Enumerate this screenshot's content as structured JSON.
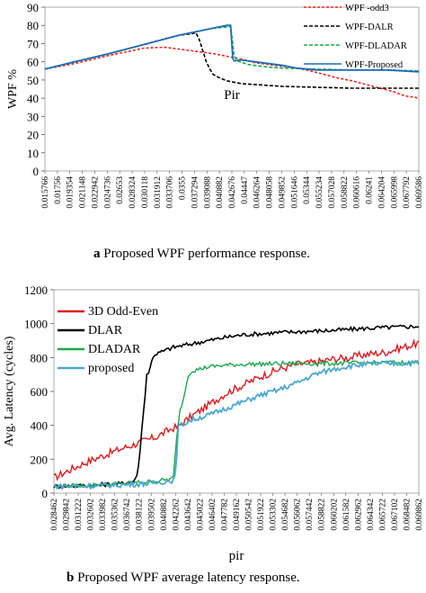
{
  "chart_data": [
    {
      "type": "line",
      "caption_letter": "a",
      "caption_text": "Proposed WPF performance response.",
      "xlabel": "Pir",
      "ylabel": "WPF %",
      "ylim": [
        0,
        90
      ],
      "yticks": [
        0,
        10,
        20,
        30,
        40,
        50,
        60,
        70,
        80,
        90
      ],
      "x_tick_labels": [
        "0.015766",
        "0.01756",
        "0.019354",
        "0.021148",
        "0.022942",
        "0.024736",
        "0.02653",
        "0.028324",
        "0.030118",
        "0.031912",
        "0.033706",
        "0.0355",
        "0.037294",
        "0.039088",
        "0.040882",
        "0.042676",
        "0.04447",
        "0.046264",
        "0.048058",
        "0.049852",
        "0.051646",
        "0.05344",
        "0.055234",
        "0.057028",
        "0.058822",
        "0.060616",
        "0.06241",
        "0.064204",
        "0.065998",
        "0.067792",
        "0.069586"
      ],
      "legend_position": "top-right",
      "grid": false,
      "series": [
        {
          "name": "WPF -odd3",
          "color": "#e8261e",
          "dash": "3,2",
          "x": [
            0.015766,
            0.02,
            0.025,
            0.03,
            0.033,
            0.035,
            0.037,
            0.038,
            0.04,
            0.042,
            0.044,
            0.046,
            0.048,
            0.05,
            0.052,
            0.054,
            0.056,
            0.058,
            0.06,
            0.062,
            0.064,
            0.066,
            0.067,
            0.068,
            0.069,
            0.069586
          ],
          "y": [
            56,
            59,
            63.5,
            67.5,
            68,
            67,
            66,
            65.5,
            64.5,
            63,
            61.5,
            59.5,
            58.5,
            57.5,
            56.5,
            55,
            53,
            51,
            49.5,
            47.5,
            45.5,
            43.5,
            42,
            41,
            40.5,
            40
          ]
        },
        {
          "name": "WPF-DALR",
          "color": "#000000",
          "dash": "4,2",
          "x": [
            0.015766,
            0.02,
            0.025,
            0.03,
            0.035,
            0.037,
            0.0375,
            0.038,
            0.0385,
            0.039,
            0.0395,
            0.04,
            0.041,
            0.042,
            0.044,
            0.046,
            0.048,
            0.05,
            0.055,
            0.06,
            0.065,
            0.069586
          ],
          "y": [
            56,
            60,
            64.5,
            69.5,
            74.5,
            75.5,
            76,
            72,
            66,
            60,
            56,
            53,
            51,
            49.5,
            48,
            47.5,
            47,
            46.5,
            46,
            45.5,
            45.5,
            45.5
          ]
        },
        {
          "name": "WPF-DLADAR",
          "color": "#19a84a",
          "dash": "4,2",
          "x": [
            0.015766,
            0.02,
            0.025,
            0.03,
            0.035,
            0.04,
            0.0418,
            0.0425,
            0.0428,
            0.043,
            0.0435,
            0.045,
            0.048,
            0.05,
            0.055,
            0.06,
            0.065,
            0.069586
          ],
          "y": [
            56,
            60,
            64.5,
            69.5,
            74.5,
            78.5,
            79,
            79.5,
            70,
            63,
            60.5,
            58.5,
            57,
            56.5,
            56,
            55.5,
            55.5,
            55
          ]
        },
        {
          "name": "WPF-Proposed",
          "color": "#1f6db6",
          "dash": "",
          "x": [
            0.015766,
            0.02,
            0.025,
            0.03,
            0.035,
            0.04,
            0.042,
            0.0425,
            0.0428,
            0.043,
            0.044,
            0.046,
            0.048,
            0.05,
            0.052,
            0.055,
            0.06,
            0.065,
            0.069586
          ],
          "y": [
            56,
            60,
            64.5,
            69.5,
            74.5,
            78.5,
            80,
            80,
            62,
            60.5,
            61,
            60,
            59,
            58,
            56.5,
            55.5,
            55.5,
            55.5,
            54.5
          ]
        }
      ]
    },
    {
      "type": "line",
      "caption_letter": "b",
      "caption_text": "Proposed WPF average latency response.",
      "xlabel": "pir",
      "ylabel": "Avg. Latency (cycles)",
      "ylim": [
        0,
        1200
      ],
      "yticks": [
        0,
        200,
        400,
        600,
        800,
        1000,
        1200
      ],
      "x_tick_labels": [
        "0.028462",
        "0.029842",
        "0.031222",
        "0.032602",
        "0.033982",
        "0.035362",
        "0.036742",
        "0.038122",
        "0.039502",
        "0.040882",
        "0.042262",
        "0.043642",
        "0.045022",
        "0.046402",
        "0.047782",
        "0.049162",
        "0.050542",
        "0.051922",
        "0.053302",
        "0.054682",
        "0.056062",
        "0.057442",
        "0.058822",
        "0.060202",
        "0.061582",
        "0.062962",
        "0.064342",
        "0.065722",
        "0.067102",
        "0.068482",
        "0.069862"
      ],
      "legend_position": "top-left",
      "grid": false,
      "series": [
        {
          "name": "3D Odd-Even",
          "color": "#e0191f",
          "x": [
            0.028462,
            0.03,
            0.032,
            0.034,
            0.036,
            0.038,
            0.04,
            0.042,
            0.0425,
            0.044,
            0.046,
            0.048,
            0.05,
            0.052,
            0.054,
            0.056,
            0.058,
            0.06,
            0.062,
            0.064,
            0.066,
            0.068,
            0.069862
          ],
          "y": [
            90,
            130,
            180,
            220,
            260,
            295,
            330,
            385,
            390,
            450,
            520,
            590,
            640,
            690,
            730,
            760,
            770,
            790,
            800,
            820,
            830,
            860,
            885
          ]
        },
        {
          "name": "DLAR",
          "color": "#000000",
          "x": [
            0.028462,
            0.032,
            0.036,
            0.0375,
            0.038,
            0.0383,
            0.0387,
            0.039,
            0.0393,
            0.0397,
            0.04,
            0.041,
            0.042,
            0.044,
            0.046,
            0.048,
            0.05,
            0.055,
            0.06,
            0.065,
            0.069862
          ],
          "y": [
            40,
            45,
            55,
            70,
            120,
            300,
            520,
            700,
            720,
            810,
            820,
            840,
            860,
            880,
            900,
            920,
            935,
            950,
            960,
            975,
            985
          ]
        },
        {
          "name": "DLADAR",
          "color": "#19a84a",
          "x": [
            0.028462,
            0.032,
            0.036,
            0.04,
            0.042,
            0.0425,
            0.0428,
            0.0432,
            0.0436,
            0.044,
            0.046,
            0.048,
            0.05,
            0.055,
            0.06,
            0.065,
            0.069862
          ],
          "y": [
            40,
            45,
            55,
            70,
            85,
            390,
            500,
            560,
            680,
            720,
            745,
            755,
            760,
            765,
            765,
            770,
            770
          ]
        },
        {
          "name": "proposed",
          "color": "#4aa8cf",
          "x": [
            0.028462,
            0.032,
            0.036,
            0.04,
            0.042,
            0.0423,
            0.0425,
            0.044,
            0.046,
            0.048,
            0.05,
            0.052,
            0.054,
            0.056,
            0.058,
            0.06,
            0.062,
            0.064,
            0.066,
            0.068,
            0.069862
          ],
          "y": [
            40,
            42,
            48,
            60,
            75,
            100,
            390,
            430,
            460,
            500,
            540,
            580,
            610,
            650,
            700,
            730,
            750,
            760,
            765,
            765,
            770
          ]
        }
      ]
    }
  ]
}
